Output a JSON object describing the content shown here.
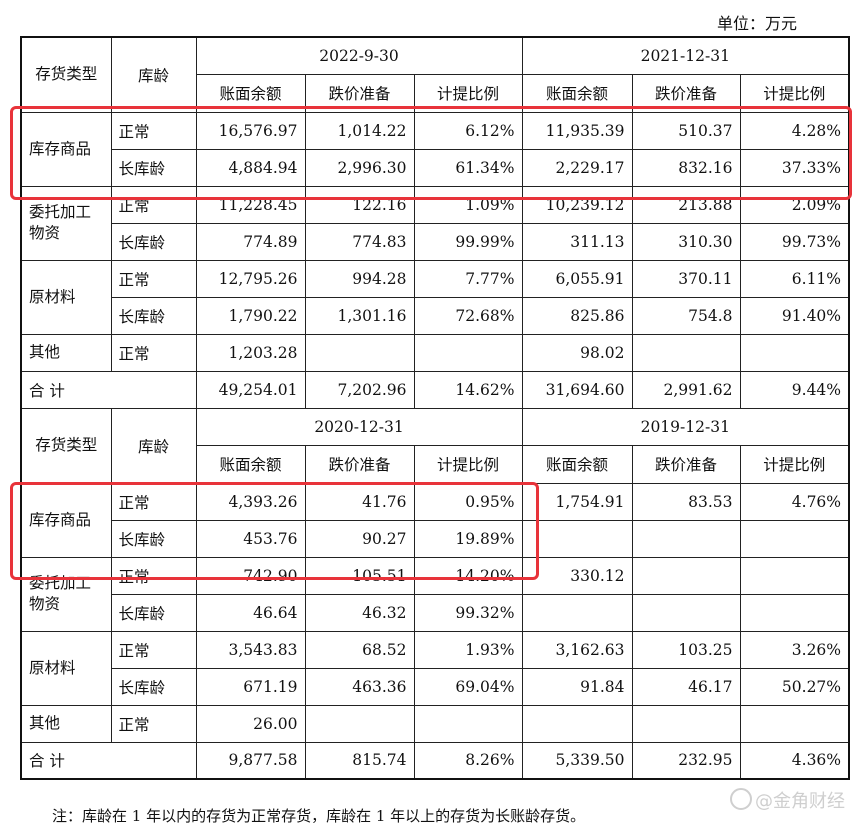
{
  "unit_label": "单位：万元",
  "header_labels": {
    "category": "存货类型",
    "age": "库龄",
    "balance": "账面余额",
    "provision": "跌价准备",
    "ratio": "计提比例"
  },
  "top": {
    "periods": [
      "2022-9-30",
      "2021-12-31"
    ],
    "rows": [
      {
        "cat": "库存商品",
        "age": "正常",
        "v": [
          "16,576.97",
          "1,014.22",
          "6.12%",
          "11,935.39",
          "510.37",
          "4.28%"
        ]
      },
      {
        "cat": "",
        "age": "长库龄",
        "v": [
          "4,884.94",
          "2,996.30",
          "61.34%",
          "2,229.17",
          "832.16",
          "37.33%"
        ]
      },
      {
        "cat": "委托加工物资",
        "age": "正常",
        "v": [
          "11,228.45",
          "122.16",
          "1.09%",
          "10,239.12",
          "213.88",
          "2.09%"
        ]
      },
      {
        "cat": "",
        "age": "长库龄",
        "v": [
          "774.89",
          "774.83",
          "99.99%",
          "311.13",
          "310.30",
          "99.73%"
        ]
      },
      {
        "cat": "原材料",
        "age": "正常",
        "v": [
          "12,795.26",
          "994.28",
          "7.77%",
          "6,055.91",
          "370.11",
          "6.11%"
        ]
      },
      {
        "cat": "",
        "age": "长库龄",
        "v": [
          "1,790.22",
          "1,301.16",
          "72.68%",
          "825.86",
          "754.8",
          "91.40%"
        ]
      },
      {
        "cat": "其他",
        "age": "正常",
        "v": [
          "1,203.28",
          "",
          "",
          "98.02",
          "",
          ""
        ]
      }
    ],
    "total": {
      "label": "合 计",
      "v": [
        "49,254.01",
        "7,202.96",
        "14.62%",
        "31,694.60",
        "2,991.62",
        "9.44%"
      ]
    }
  },
  "bottom": {
    "periods": [
      "2020-12-31",
      "2019-12-31"
    ],
    "rows": [
      {
        "cat": "库存商品",
        "age": "正常",
        "v": [
          "4,393.26",
          "41.76",
          "0.95%",
          "1,754.91",
          "83.53",
          "4.76%"
        ]
      },
      {
        "cat": "",
        "age": "长库龄",
        "v": [
          "453.76",
          "90.27",
          "19.89%",
          "",
          "",
          ""
        ]
      },
      {
        "cat": "委托加工物资",
        "age": "正常",
        "v": [
          "742.90",
          "105.51",
          "14.20%",
          "330.12",
          "",
          ""
        ]
      },
      {
        "cat": "",
        "age": "长库龄",
        "v": [
          "46.64",
          "46.32",
          "99.32%",
          "",
          "",
          ""
        ]
      },
      {
        "cat": "原材料",
        "age": "正常",
        "v": [
          "3,543.83",
          "68.52",
          "1.93%",
          "3,162.63",
          "103.25",
          "3.26%"
        ]
      },
      {
        "cat": "",
        "age": "长库龄",
        "v": [
          "671.19",
          "463.36",
          "69.04%",
          "91.84",
          "46.17",
          "50.27%"
        ]
      },
      {
        "cat": "其他",
        "age": "正常",
        "v": [
          "26.00",
          "",
          "",
          "",
          "",
          ""
        ]
      }
    ],
    "total": {
      "label": "合 计",
      "v": [
        "9,877.58",
        "815.74",
        "8.26%",
        "5,339.50",
        "232.95",
        "4.36%"
      ]
    }
  },
  "footnote": "注：库龄在 1 年以内的存货为正常存货，库龄在 1 年以上的存货为长账龄存货。",
  "watermark": "@金角财经",
  "highlight_color": "#e8333a"
}
